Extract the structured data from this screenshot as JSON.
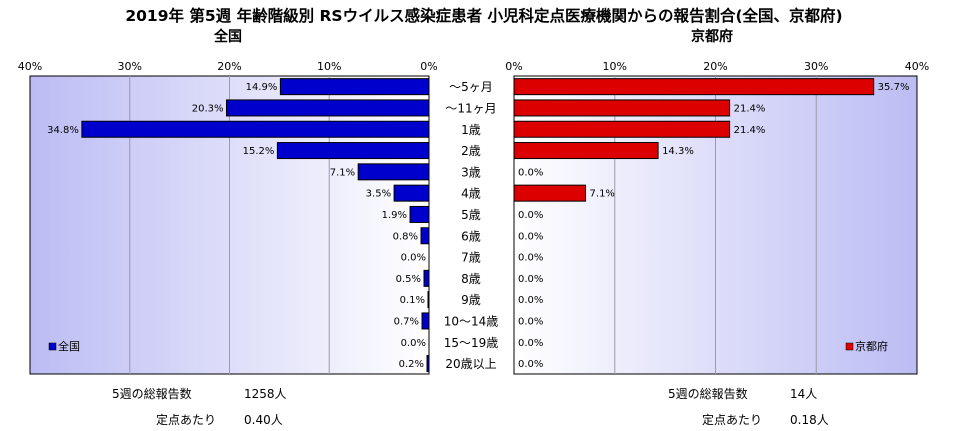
{
  "title": "2019年 第5週 年齢階級別 RSウイルス感染症患者 小児科定点医療機関からの報告割合(全国、京都府)",
  "chart_data": {
    "type": "bar",
    "orientation": "horizontal",
    "categories": [
      "～5ヶ月",
      "～11ヶ月",
      "1歳",
      "2歳",
      "3歳",
      "4歳",
      "5歳",
      "6歳",
      "7歳",
      "8歳",
      "9歳",
      "10～14歳",
      "15～19歳",
      "20歳以上"
    ],
    "xlim": [
      0,
      40
    ],
    "tick_labels": [
      "0%",
      "10%",
      "20%",
      "30%",
      "40%"
    ],
    "grid": true,
    "panels": [
      {
        "subtitle": "全国",
        "direction": "reversed",
        "series": [
          {
            "name": "全国",
            "values": [
              14.9,
              20.3,
              34.8,
              15.2,
              7.1,
              3.5,
              1.9,
              0.8,
              0.0,
              0.5,
              0.1,
              0.7,
              0.0,
              0.2
            ]
          }
        ],
        "value_labels": [
          "14.9%",
          "20.3%",
          "34.8%",
          "15.2%",
          "7.1%",
          "3.5%",
          "1.9%",
          "0.8%",
          "0.0%",
          "0.5%",
          "0.1%",
          "0.7%",
          "0.0%",
          "0.2%"
        ],
        "color": "#0000cc",
        "legend_position": "bottom-left"
      },
      {
        "subtitle": "京都府",
        "direction": "normal",
        "series": [
          {
            "name": "京都府",
            "values": [
              35.7,
              21.4,
              21.4,
              14.3,
              0.0,
              7.1,
              0.0,
              0.0,
              0.0,
              0.0,
              0.0,
              0.0,
              0.0,
              0.0
            ]
          }
        ],
        "value_labels": [
          "35.7%",
          "21.4%",
          "21.4%",
          "14.3%",
          "0.0%",
          "7.1%",
          "0.0%",
          "0.0%",
          "0.0%",
          "0.0%",
          "0.0%",
          "0.0%",
          "0.0%",
          "0.0%"
        ],
        "color": "#dd0000",
        "legend_position": "bottom-right"
      }
    ]
  },
  "footer": {
    "left": [
      {
        "label": "5週の総報告数",
        "value": "1258人"
      },
      {
        "label": "定点あたり",
        "value": "0.40人"
      }
    ],
    "right": [
      {
        "label": "5週の総報告数",
        "value": "14人"
      },
      {
        "label": "定点あたり",
        "value": "0.18人"
      }
    ]
  }
}
